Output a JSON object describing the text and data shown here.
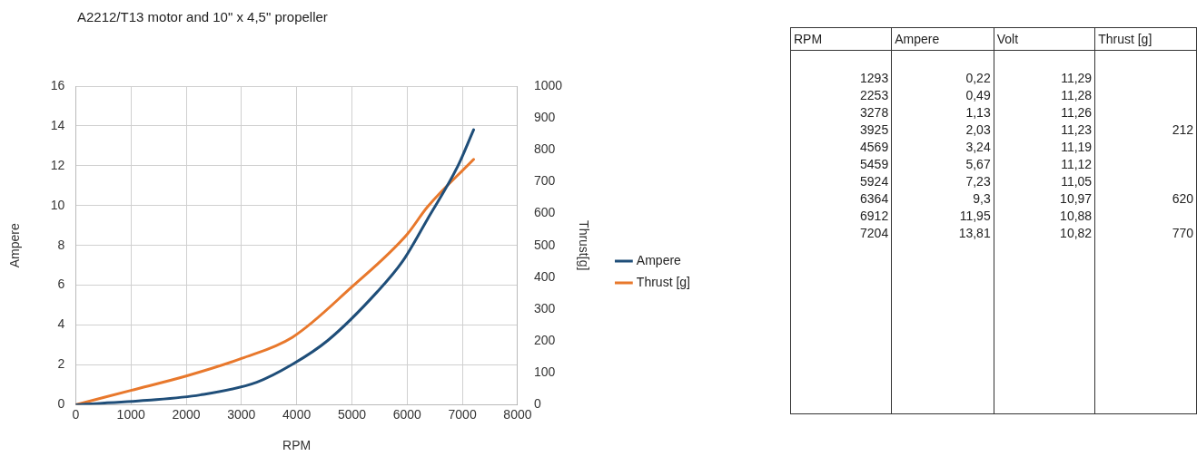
{
  "chart_data": [
    {
      "type": "line",
      "title": "A2212/T13 motor and 10\" x 4,5\" propeller",
      "xlabel": "RPM",
      "ylabel": "Ampere",
      "y2label": "Thrust[g]",
      "series": [
        {
          "name": "Ampere",
          "color": "#1f4e79",
          "x": [
            0,
            1293,
            2253,
            3278,
            3925,
            4569,
            5459,
            5924,
            6364,
            6912,
            7204
          ],
          "values": [
            0,
            0.22,
            0.49,
            1.13,
            2.03,
            3.24,
            5.67,
            7.23,
            9.3,
            11.95,
            13.81
          ]
        },
        {
          "name": "Thrust [g]",
          "color": "#e8782c",
          "axis": "y2",
          "x": [
            0,
            1000,
            2000,
            3000,
            3925,
            5000,
            6000,
            6364,
            7204
          ],
          "values": [
            0,
            45,
            90,
            145,
            212,
            370,
            535,
            620,
            770
          ]
        }
      ],
      "xlim": [
        0,
        8000
      ],
      "xticks": [
        0,
        1000,
        2000,
        3000,
        4000,
        5000,
        6000,
        7000,
        8000
      ],
      "ylim": [
        0,
        16
      ],
      "yticks": [
        0,
        2,
        4,
        6,
        8,
        10,
        12,
        14,
        16
      ],
      "y2lim": [
        0,
        1000
      ],
      "y2ticks": [
        0,
        100,
        200,
        300,
        400,
        500,
        600,
        700,
        800,
        900,
        1000
      ],
      "grid": true,
      "legend": "right",
      "marker": "none",
      "line_style": "solid"
    },
    {
      "type": "other",
      "categories": [
        "RPM",
        "Ampere",
        "Volt",
        "Thrust [g]"
      ],
      "cell_labels": [
        [
          "1293",
          "0,22",
          "11,29",
          null
        ],
        [
          "2253",
          "0,49",
          "11,28",
          null
        ],
        [
          "3278",
          "1,13",
          "11,26",
          null
        ],
        [
          "3925",
          "2,03",
          "11,23",
          "212"
        ],
        [
          "4569",
          "3,24",
          "11,19",
          null
        ],
        [
          "5459",
          "5,67",
          "11,12",
          null
        ],
        [
          "5924",
          "7,23",
          "11,05",
          null
        ],
        [
          "6364",
          "9,3",
          "10,97",
          "620"
        ],
        [
          "6912",
          "11,95",
          "10,88",
          null
        ],
        [
          "7204",
          "13,81",
          "10,82",
          "770"
        ]
      ]
    }
  ]
}
